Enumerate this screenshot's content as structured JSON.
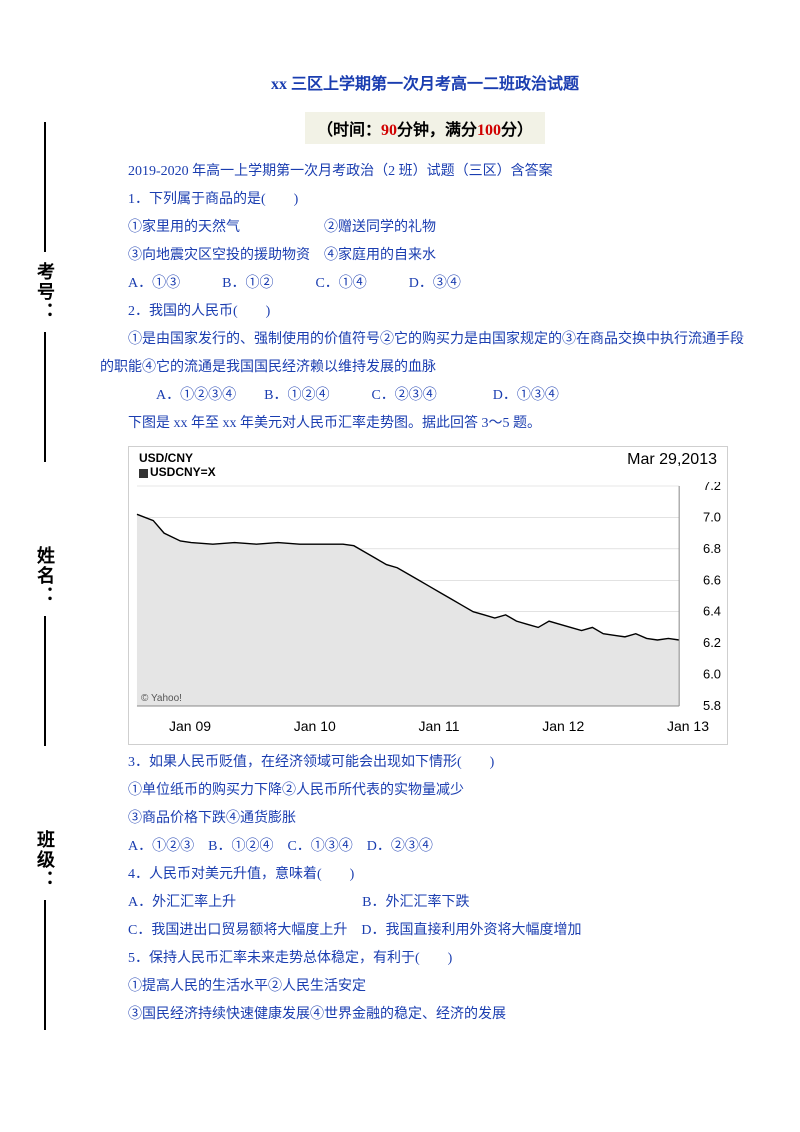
{
  "sidebar": {
    "items": [
      {
        "label": "考号："
      },
      {
        "label": "姓名："
      },
      {
        "label": "班级："
      }
    ]
  },
  "title": "xx 三区上学期第一次月考高一二班政治试题",
  "subtitle": {
    "p1": "（时间：",
    "p2": "90",
    "p3": "分钟，满分",
    "p4": "100",
    "p5": "分）"
  },
  "intro": "2019-2020 年高一上学期第一次月考政治（2 班）试题（三区）含答案",
  "q1": {
    "stem": "1．下列属于商品的是(　　)",
    "l1": "①家里用的天然气　　　　　　②赠送同学的礼物",
    "l2": "③向地震灾区空投的援助物资　④家庭用的自来水",
    "opts": "A．①③　　　B．①②　　　C．①④　　　D．③④"
  },
  "q2": {
    "stem": "2．我国的人民币(　　)",
    "l1": "①是由国家发行的、强制使用的价值符号②它的购买力是由国家规定的③在商品交换中执行流通手段的职能④它的流通是我国国民经济赖以维持发展的血脉",
    "opts": "A．①②③④　　B．①②④　　　C．②③④　　　　D．①③④"
  },
  "chart_intro": "下图是 xx 年至 xx 年美元对人民币汇率走势图。据此回答 3～5 题。",
  "chart": {
    "pair": "USD/CNY",
    "legend": "USDCNY=X",
    "date": "Mar 29,2013",
    "credit": "© Yahoo!",
    "yticks": [
      "7.2",
      "7.0",
      "6.8",
      "6.6",
      "6.4",
      "6.2",
      "6.0",
      "5.8"
    ],
    "ylim_top": 7.2,
    "ylim_bottom": 5.8,
    "xlabels": [
      "Jan 09",
      "Jan 10",
      "Jan 11",
      "Jan 12",
      "Jan 13"
    ],
    "area_fill": "#e5e5e5",
    "line_color": "#000000",
    "grid_color": "#d0d0d0",
    "background": "#ffffff",
    "series": [
      {
        "x": 0,
        "y": 7.02
      },
      {
        "x": 3,
        "y": 6.98
      },
      {
        "x": 5,
        "y": 6.9
      },
      {
        "x": 8,
        "y": 6.85
      },
      {
        "x": 10,
        "y": 6.84
      },
      {
        "x": 14,
        "y": 6.83
      },
      {
        "x": 18,
        "y": 6.84
      },
      {
        "x": 22,
        "y": 6.83
      },
      {
        "x": 26,
        "y": 6.84
      },
      {
        "x": 30,
        "y": 6.83
      },
      {
        "x": 34,
        "y": 6.83
      },
      {
        "x": 38,
        "y": 6.83
      },
      {
        "x": 40,
        "y": 6.82
      },
      {
        "x": 42,
        "y": 6.78
      },
      {
        "x": 44,
        "y": 6.74
      },
      {
        "x": 46,
        "y": 6.7
      },
      {
        "x": 48,
        "y": 6.68
      },
      {
        "x": 50,
        "y": 6.64
      },
      {
        "x": 52,
        "y": 6.6
      },
      {
        "x": 54,
        "y": 6.56
      },
      {
        "x": 56,
        "y": 6.52
      },
      {
        "x": 58,
        "y": 6.48
      },
      {
        "x": 60,
        "y": 6.44
      },
      {
        "x": 62,
        "y": 6.4
      },
      {
        "x": 64,
        "y": 6.38
      },
      {
        "x": 66,
        "y": 6.36
      },
      {
        "x": 68,
        "y": 6.38
      },
      {
        "x": 70,
        "y": 6.34
      },
      {
        "x": 72,
        "y": 6.32
      },
      {
        "x": 74,
        "y": 6.3
      },
      {
        "x": 76,
        "y": 6.34
      },
      {
        "x": 78,
        "y": 6.32
      },
      {
        "x": 80,
        "y": 6.3
      },
      {
        "x": 82,
        "y": 6.28
      },
      {
        "x": 84,
        "y": 6.3
      },
      {
        "x": 86,
        "y": 6.26
      },
      {
        "x": 88,
        "y": 6.25
      },
      {
        "x": 90,
        "y": 6.24
      },
      {
        "x": 92,
        "y": 6.26
      },
      {
        "x": 94,
        "y": 6.23
      },
      {
        "x": 96,
        "y": 6.22
      },
      {
        "x": 98,
        "y": 6.23
      },
      {
        "x": 100,
        "y": 6.22
      }
    ]
  },
  "q3": {
    "stem": "3．如果人民币贬值，在经济领域可能会出现如下情形(　　)",
    "l1": "①单位纸币的购买力下降②人民币所代表的实物量减少",
    "l2": "③商品价格下跌④通货膨胀",
    "opts": "A．①②③　B．①②④　C．①③④　D．②③④"
  },
  "q4": {
    "stem": "4．人民币对美元升值，意味着(　　)",
    "l1": "A．外汇汇率上升　　　　　　　　　B．外汇汇率下跌",
    "l2": "C．我国进出口贸易额将大幅度上升　D．我国直接利用外资将大幅度增加"
  },
  "q5": {
    "stem": "5．保持人民币汇率未来走势总体稳定，有利于(　　)",
    "l1": "①提高人民的生活水平②人民生活安定",
    "l2": "③国民经济持续快速健康发展④世界金融的稳定、经济的发展"
  }
}
